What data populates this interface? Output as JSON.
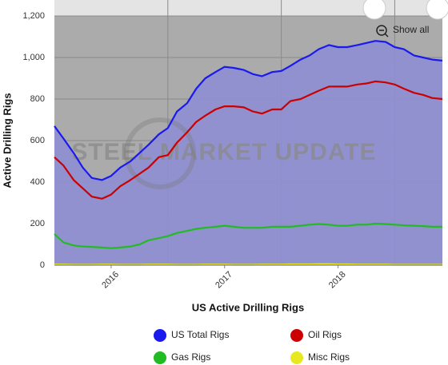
{
  "chart_data": {
    "type": "line",
    "title": "US Active Drilling Rigs",
    "y_label": "Active Drilling Rigs",
    "watermark": "STEEL MARKET UPDATE",
    "button": "Show all",
    "x": [
      2016,
      2016.08,
      2016.17,
      2016.25,
      2016.33,
      2016.42,
      2016.5,
      2016.58,
      2016.67,
      2016.75,
      2016.83,
      2016.92,
      2017,
      2017.08,
      2017.17,
      2017.25,
      2017.33,
      2017.42,
      2017.5,
      2017.58,
      2017.67,
      2017.75,
      2017.83,
      2017.92,
      2018,
      2018.08,
      2018.17,
      2018.25,
      2018.33,
      2018.42,
      2018.5,
      2018.58,
      2018.67,
      2018.75,
      2018.83,
      2018.92,
      2019,
      2019.08,
      2019.17,
      2019.25,
      2019.33,
      2019.42
    ],
    "series": [
      {
        "name": "US Total Rigs",
        "color": "#1a1aee",
        "fill": true,
        "values": [
          670,
          610,
          540,
          470,
          420,
          410,
          430,
          470,
          500,
          540,
          580,
          630,
          660,
          740,
          780,
          850,
          900,
          930,
          955,
          950,
          940,
          920,
          910,
          930,
          935,
          960,
          990,
          1010,
          1040,
          1060,
          1050,
          1050,
          1060,
          1070,
          1080,
          1075,
          1050,
          1040,
          1010,
          1000,
          990,
          985
        ]
      },
      {
        "name": "Oil Rigs",
        "color": "#cc0000",
        "values": [
          520,
          480,
          410,
          370,
          330,
          320,
          340,
          380,
          410,
          440,
          470,
          520,
          530,
          590,
          640,
          690,
          720,
          750,
          765,
          765,
          760,
          740,
          730,
          750,
          750,
          790,
          800,
          820,
          840,
          860,
          860,
          860,
          870,
          875,
          885,
          880,
          870,
          850,
          830,
          820,
          805,
          800
        ]
      },
      {
        "name": "Gas Rigs",
        "color": "#22bb22",
        "values": [
          150,
          110,
          95,
          90,
          88,
          85,
          82,
          85,
          90,
          100,
          120,
          130,
          140,
          155,
          165,
          175,
          180,
          185,
          190,
          185,
          180,
          180,
          180,
          185,
          185,
          185,
          190,
          195,
          198,
          195,
          190,
          190,
          195,
          195,
          200,
          198,
          195,
          192,
          190,
          188,
          185,
          185
        ]
      },
      {
        "name": "Misc Rigs",
        "color": "#e8e820",
        "values": [
          3,
          3,
          2,
          2,
          2,
          3,
          3,
          2,
          2,
          2,
          3,
          3,
          3,
          2,
          2,
          2,
          3,
          3,
          3,
          2,
          2,
          2,
          3,
          3,
          3,
          4,
          4,
          4,
          5,
          5,
          4,
          4,
          3,
          3,
          3,
          3,
          2,
          2,
          2,
          2,
          2,
          2
        ]
      }
    ],
    "xlim": [
      2016,
      2019.42
    ],
    "xticks": [
      {
        "value": 2016.5,
        "label": "2016"
      },
      {
        "value": 2017.5,
        "label": "2017"
      },
      {
        "value": 2018.5,
        "label": "2018"
      }
    ],
    "xgrid": [
      2017,
      2018,
      2019
    ],
    "ylim": [
      0,
      1200
    ],
    "yticks": [
      0,
      200,
      400,
      600,
      800,
      {
        "value": 1000,
        "label": "1,000"
      },
      {
        "value": 1200,
        "label": "1,200"
      }
    ],
    "grid": true
  }
}
